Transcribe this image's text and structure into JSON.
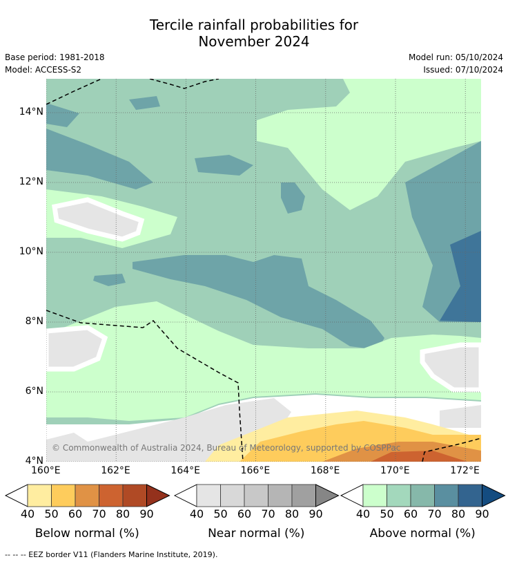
{
  "chart_data": {
    "type": "heatmap",
    "title_line1": "Tercile rainfall probabilities for",
    "title_line2": "November 2024",
    "base_period": "Base period: 1981-2018",
    "model": "Model: ACCESS-S2",
    "model_run": "Model run: 05/10/2024",
    "issued": "Issued: 07/10/2024",
    "x_ticks": [
      "160°E",
      "162°E",
      "164°E",
      "166°E",
      "168°E",
      "170°E",
      "172°E"
    ],
    "x_values": [
      160,
      162,
      164,
      166,
      168,
      170,
      172
    ],
    "y_ticks": [
      "14°N",
      "12°N",
      "10°N",
      "8°N",
      "6°N",
      "4°N"
    ],
    "y_values": [
      14,
      12,
      10,
      8,
      6,
      4
    ],
    "xlim": [
      160,
      172.45
    ],
    "ylim": [
      4,
      14.97
    ],
    "grid": true,
    "copyright": "© Commonwealth of Australia 2024, Bureau of Meteorology, supported by COSPPac",
    "footnote": "--  --  -- EEZ border V11 (Flanders Marine Institute, 2019).",
    "colorbars": [
      {
        "label": "Below normal (%)",
        "ticks": [
          "40",
          "50",
          "60",
          "70",
          "80",
          "90"
        ],
        "colors": [
          "#ffeda0",
          "#fecc5c",
          "#e09245",
          "#cd6330",
          "#b04a25",
          "#94311c"
        ]
      },
      {
        "label": "Near normal (%)",
        "ticks": [
          "40",
          "50",
          "60",
          "70",
          "80",
          "90"
        ],
        "colors": [
          "#e5e5e5",
          "#d8d8d8",
          "#c8c8c8",
          "#b5b5b5",
          "#a0a0a0",
          "#868686"
        ]
      },
      {
        "label": "Above normal (%)",
        "ticks": [
          "40",
          "50",
          "60",
          "70",
          "80",
          "90"
        ],
        "colors": [
          "#ccffcc",
          "#a3d8bc",
          "#86b8aa",
          "#5a8fa0",
          "#33648f",
          "#144c80"
        ]
      }
    ]
  }
}
